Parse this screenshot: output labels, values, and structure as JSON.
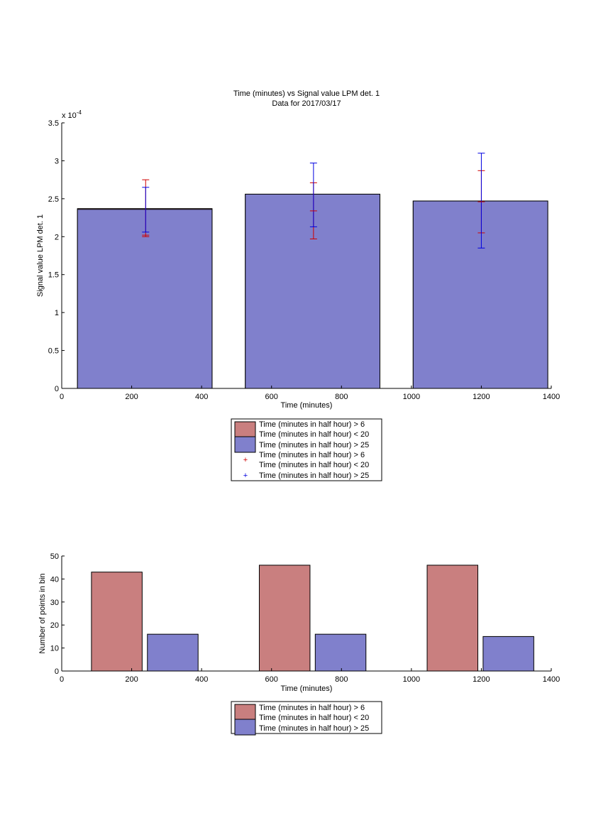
{
  "chart_data": [
    {
      "type": "bar",
      "title": "Time (minutes) vs Signal value LPM det. 1",
      "subtitle": "Data for 2017/03/17",
      "xlabel": "Time (minutes)",
      "ylabel": "Signal value LPM det. 1",
      "y_exponent_label": "x 10",
      "y_exponent_power": "-4",
      "xlim": [
        0,
        1400
      ],
      "ylim": [
        0,
        3.5
      ],
      "x_ticks": [
        0,
        200,
        400,
        600,
        800,
        1000,
        1200,
        1400
      ],
      "y_ticks": [
        0,
        0.5,
        1,
        1.5,
        2,
        2.5,
        3,
        3.5
      ],
      "y_tick_labels": [
        "0",
        "0.5",
        "1",
        "1.5",
        "2",
        "2.5",
        "3",
        "3.5"
      ],
      "grid": false,
      "legend_position": "below",
      "legend": [
        "Time (minutes in half hour) > 6",
        "Time (minutes in half hour) < 20",
        "Time (minutes in half hour) > 25",
        "Time (minutes in half hour) > 6",
        "Time (minutes in half hour) < 20",
        "Time (minutes in half hour) > 25"
      ],
      "bars": [
        {
          "x_start": 45,
          "x_end": 430,
          "red_value": 2.37,
          "blue_value": 2.36
        },
        {
          "x_start": 525,
          "x_end": 910,
          "red_value": 2.56,
          "blue_value": 2.56
        },
        {
          "x_start": 1005,
          "x_end": 1390,
          "red_value": 2.47,
          "blue_value": 2.47
        }
      ],
      "errorbars": [
        {
          "name": "red",
          "color": "#d00000",
          "points": [
            {
              "x": 240,
              "low": 2.0,
              "high": 2.75
            },
            {
              "x": 720,
              "low": 1.97,
              "high": 2.71
            },
            {
              "x": 1200,
              "low": 2.05,
              "high": 2.87
            }
          ]
        },
        {
          "name": "blue",
          "color": "#0000e0",
          "points": [
            {
              "x": 240,
              "low": 2.06,
              "high": 2.65
            },
            {
              "x": 720,
              "low": 2.13,
              "high": 2.97
            },
            {
              "x": 1200,
              "low": 1.85,
              "high": 3.1
            }
          ]
        }
      ],
      "red_center_marks": [
        {
          "x": 240,
          "y": 2.02
        },
        {
          "x": 720,
          "y": 2.34
        },
        {
          "x": 1200,
          "y": 2.46
        }
      ]
    },
    {
      "type": "bar",
      "xlabel": "Time (minutes)",
      "ylabel": "Number of points in bin",
      "xlim": [
        0,
        1400
      ],
      "ylim": [
        0,
        50
      ],
      "x_ticks": [
        0,
        200,
        400,
        600,
        800,
        1000,
        1200,
        1400
      ],
      "y_ticks": [
        0,
        10,
        20,
        30,
        40,
        50
      ],
      "grid": false,
      "legend_position": "below",
      "legend": [
        "Time (minutes in half hour) > 6",
        "Time (minutes in half hour) < 20",
        "Time (minutes in half hour) > 25"
      ],
      "series": [
        {
          "name": "Time (minutes in half hour) > 6",
          "color": "#c97f7f",
          "bars": [
            {
              "x_start": 85,
              "x_end": 230,
              "value": 43
            },
            {
              "x_start": 565,
              "x_end": 710,
              "value": 46
            },
            {
              "x_start": 1045,
              "x_end": 1190,
              "value": 46
            }
          ]
        },
        {
          "name": "Time (minutes in half hour) > 25",
          "color": "#8080cc",
          "bars": [
            {
              "x_start": 245,
              "x_end": 390,
              "value": 16
            },
            {
              "x_start": 725,
              "x_end": 870,
              "value": 16
            },
            {
              "x_start": 1205,
              "x_end": 1350,
              "value": 15
            }
          ]
        }
      ]
    }
  ],
  "colors": {
    "red_fill": "#c97f7f",
    "blue_fill": "#8080cc",
    "error_red": "#d00000",
    "error_blue": "#0000e0"
  }
}
